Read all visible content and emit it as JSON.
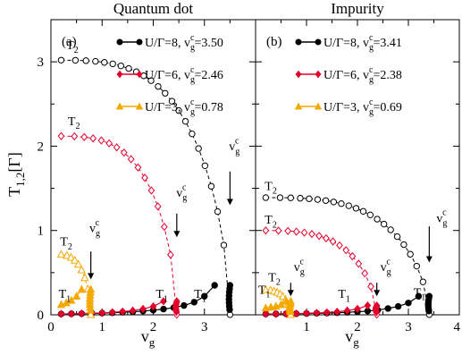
{
  "chart_data": [
    {
      "type": "scatter",
      "panel_label": "(a)",
      "title": "Quantum dot",
      "xlabel": "v",
      "xlabel_sub": "g",
      "ylabel": "T",
      "ylabel_sub": "1,2",
      "ylabel_unit": "[Γ]",
      "xlim": [
        0,
        4
      ],
      "ylim": [
        0,
        3.5
      ],
      "xticks": [
        "0",
        "1",
        "2",
        "3"
      ],
      "xtick_values": [
        0,
        1,
        2,
        3
      ],
      "yticks": [
        "0",
        "1",
        "2",
        "3"
      ],
      "ytick_values": [
        0,
        1,
        2,
        3
      ],
      "series": [
        {
          "name": "U/Γ=8, v_g^c=3.50",
          "legend": {
            "prefix": "U/Γ=8, v",
            "sub": "g",
            "sup": "c",
            "suffix": "=3.50"
          },
          "color": "#000000",
          "marker": "circle",
          "vc": 3.5,
          "T2_max": 3.02,
          "T1": {
            "x": [
              0.2,
              0.4,
              0.6,
              0.8,
              1.0,
              1.2,
              1.4,
              1.6,
              1.8,
              2.0,
              2.2,
              2.4,
              2.6,
              2.8,
              3.0,
              3.2
            ],
            "y": [
              0.01,
              0.012,
              0.014,
              0.016,
              0.02,
              0.024,
              0.03,
              0.036,
              0.045,
              0.055,
              0.068,
              0.085,
              0.11,
              0.15,
              0.22,
              0.35
            ]
          }
        },
        {
          "name": "U/Γ=6, v_g^c=2.46",
          "legend": {
            "prefix": "U/Γ=6, v",
            "sub": "g",
            "sup": "c",
            "suffix": "=2.46"
          },
          "color": "#e4002b",
          "marker": "diamond",
          "vc": 2.46,
          "T2_max": 2.12,
          "T1": {
            "x": [
              0.2,
              0.4,
              0.6,
              0.8,
              1.0,
              1.2,
              1.4,
              1.6,
              1.8,
              2.0,
              2.2
            ],
            "y": [
              0.01,
              0.012,
              0.015,
              0.018,
              0.023,
              0.03,
              0.038,
              0.05,
              0.07,
              0.1,
              0.16
            ]
          }
        },
        {
          "name": "U/Γ=3, v_g^c=0.78",
          "legend": {
            "prefix": "U/Γ=3, v",
            "sub": "g",
            "sup": "c",
            "suffix": "=0.78"
          },
          "color": "#f5a800",
          "marker": "triangle",
          "vc": 0.78,
          "T2_max": 0.72,
          "T1": {
            "x": [
              0.2,
              0.3,
              0.4,
              0.5,
              0.6
            ],
            "y": [
              0.12,
              0.14,
              0.17,
              0.22,
              0.3
            ]
          }
        }
      ],
      "annotations": [
        {
          "text": "T",
          "sub": "2",
          "x": 0.3,
          "y": 3.15
        },
        {
          "text": "T",
          "sub": "2",
          "x": 0.33,
          "y": 2.25
        },
        {
          "text": "v",
          "sub": "g",
          "sup": "c",
          "x": 3.48,
          "y": 1.95
        },
        {
          "text": "v",
          "sub": "g",
          "sup": "c",
          "x": 2.45,
          "y": 1.4
        },
        {
          "text": "T",
          "sub": "2",
          "x": 0.18,
          "y": 0.82
        },
        {
          "text": "v",
          "sub": "g",
          "sup": "c",
          "x": 0.75,
          "y": 0.98
        },
        {
          "text": "T",
          "sub": "1",
          "x": 0.15,
          "y": 0.2
        },
        {
          "text": "T",
          "sub": "1",
          "x": 2.05,
          "y": 0.2
        },
        {
          "text": "T",
          "sub": "1",
          "x": 2.8,
          "y": 0.2
        }
      ]
    },
    {
      "type": "scatter",
      "panel_label": "(b)",
      "title": "Impurity",
      "xlabel": "v",
      "xlabel_sub": "g",
      "xlim": [
        0,
        4
      ],
      "ylim": [
        0,
        3.5
      ],
      "xticks": [
        "1",
        "2",
        "3",
        "4"
      ],
      "xtick_values": [
        1,
        2,
        3,
        4
      ],
      "series": [
        {
          "name": "U/Γ=8, v_g^c=3.41",
          "legend": {
            "prefix": "U/Γ=8, v",
            "sub": "g",
            "sup": "c",
            "suffix": "=3.41"
          },
          "color": "#000000",
          "marker": "circle",
          "vc": 3.41,
          "T2_max": 1.39,
          "T1": {
            "x": [
              0.2,
              0.4,
              0.6,
              0.8,
              1.0,
              1.2,
              1.4,
              1.6,
              1.8,
              2.0,
              2.2,
              2.4,
              2.6,
              2.8,
              3.0,
              3.2
            ],
            "y": [
              0.01,
              0.011,
              0.012,
              0.014,
              0.016,
              0.018,
              0.021,
              0.025,
              0.03,
              0.036,
              0.045,
              0.056,
              0.075,
              0.1,
              0.14,
              0.22
            ]
          }
        },
        {
          "name": "U/Γ=6, v_g^c=2.38",
          "legend": {
            "prefix": "U/Γ=6, v",
            "sub": "g",
            "sup": "c",
            "suffix": "=2.38"
          },
          "color": "#e4002b",
          "marker": "diamond",
          "vc": 2.38,
          "T2_max": 1.0,
          "T1": {
            "x": [
              0.2,
              0.4,
              0.6,
              0.8,
              1.0,
              1.2,
              1.4,
              1.6,
              1.8,
              2.0,
              2.2
            ],
            "y": [
              0.01,
              0.011,
              0.013,
              0.015,
              0.018,
              0.022,
              0.028,
              0.036,
              0.05,
              0.07,
              0.11
            ]
          }
        },
        {
          "name": "U/Γ=3, v_g^c=0.69",
          "legend": {
            "prefix": "U/Γ=3, v",
            "sub": "g",
            "sup": "c",
            "suffix": "=0.69"
          },
          "color": "#f5a800",
          "marker": "triangle",
          "vc": 0.69,
          "T2_max": 0.3,
          "T1": {
            "x": [
              0.2,
              0.3,
              0.4,
              0.5,
              0.6
            ],
            "y": [
              0.08,
              0.09,
              0.1,
              0.12,
              0.16
            ]
          }
        }
      ],
      "annotations": [
        {
          "text": "T",
          "sub": "2",
          "x": 0.18,
          "y": 1.48
        },
        {
          "text": "T",
          "sub": "2",
          "x": 0.18,
          "y": 1.08
        },
        {
          "text": "v",
          "sub": "g",
          "sup": "c",
          "x": 3.55,
          "y": 1.1
        },
        {
          "text": "v",
          "sub": "g",
          "sup": "c",
          "x": 2.45,
          "y": 0.52
        },
        {
          "text": "v",
          "sub": "g",
          "sup": "c",
          "x": 0.75,
          "y": 0.52
        },
        {
          "text": "T",
          "sub": "2",
          "x": 0.25,
          "y": 0.4
        },
        {
          "text": "T",
          "sub": "1",
          "x": 0.05,
          "y": 0.25
        },
        {
          "text": "T",
          "sub": "1",
          "x": 1.62,
          "y": 0.2
        },
        {
          "text": "T",
          "sub": "1",
          "x": 3.1,
          "y": 0.22
        }
      ]
    }
  ]
}
